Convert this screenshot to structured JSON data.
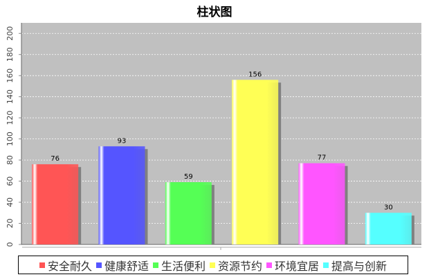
{
  "chart_data": {
    "type": "bar",
    "title": "柱状图",
    "xlabel": "",
    "ylabel": "",
    "categories": [
      "安全耐久",
      "健康舒适",
      "生活便利",
      "资源节约",
      "环境宜居",
      "提高与创新"
    ],
    "values": [
      76,
      93,
      59,
      156,
      77,
      30
    ],
    "colors": [
      "#ff5555",
      "#5555ff",
      "#55ff55",
      "#ffff55",
      "#ff55ff",
      "#55ffff"
    ],
    "ylim": [
      0,
      210
    ],
    "yticks": [
      0,
      20,
      40,
      60,
      80,
      100,
      120,
      140,
      160,
      180,
      200
    ],
    "grid": true,
    "legend": "bottom",
    "plot_background": "#c0c0c0"
  }
}
